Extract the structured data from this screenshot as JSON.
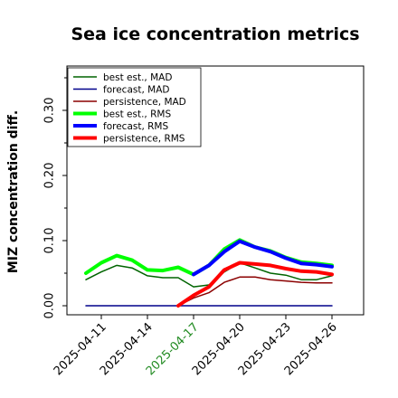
{
  "chart_data": {
    "type": "line",
    "title": "Sea ice concentration metrics",
    "ylabel": "MIZ concentration diff.",
    "xlabel": "",
    "ylim": [
      0.0,
      0.36
    ],
    "yticks": [
      "0.00",
      "0.10",
      "0.20",
      "0.30"
    ],
    "xticks": [
      "2025-04-11",
      "2025-04-14",
      "2025-04-17",
      "2025-04-20",
      "2025-04-23",
      "2025-04-26"
    ],
    "xtick_colors": [
      "#000000",
      "#000000",
      "#228b22",
      "#000000",
      "#000000",
      "#000000"
    ],
    "x": [
      "2025-04-10",
      "2025-04-11",
      "2025-04-12",
      "2025-04-13",
      "2025-04-14",
      "2025-04-15",
      "2025-04-16",
      "2025-04-17",
      "2025-04-18",
      "2025-04-19",
      "2025-04-20",
      "2025-04-21",
      "2025-04-22",
      "2025-04-23",
      "2025-04-24",
      "2025-04-25",
      "2025-04-26"
    ],
    "grid": false,
    "legend_position": "top-left",
    "series": [
      {
        "name": "best est., MAD",
        "color": "#006400",
        "width": 1.5,
        "values": [
          0.04,
          0.052,
          0.062,
          0.058,
          0.046,
          0.043,
          0.043,
          0.029,
          0.032,
          0.052,
          0.066,
          0.058,
          0.05,
          0.047,
          0.04,
          0.04,
          0.046
        ]
      },
      {
        "name": "forecast,  MAD",
        "color": "#00008b",
        "width": 1.5,
        "values": [
          0.0,
          0.0,
          0.0,
          0.0,
          0.0,
          0.0,
          0.0,
          0.0,
          0.0,
          0.0,
          0.0,
          0.0,
          0.0,
          0.0,
          0.0,
          0.0,
          0.0
        ]
      },
      {
        "name": "persistence, MAD",
        "color": "#8b0000",
        "width": 1.5,
        "values": [
          null,
          null,
          null,
          null,
          null,
          null,
          0.0,
          0.012,
          0.02,
          0.036,
          0.044,
          0.044,
          0.04,
          0.038,
          0.036,
          0.035,
          0.035
        ]
      },
      {
        "name": "best est., RMS",
        "color": "#00ff00",
        "width": 4,
        "values": [
          0.05,
          0.066,
          0.077,
          0.07,
          0.055,
          0.054,
          0.059,
          0.048,
          0.062,
          0.087,
          0.101,
          0.09,
          0.084,
          0.074,
          0.067,
          0.065,
          0.062
        ]
      },
      {
        "name": "forecast,  RMS",
        "color": "#0000ff",
        "width": 4,
        "values": [
          null,
          null,
          null,
          null,
          null,
          null,
          null,
          0.048,
          0.062,
          0.083,
          0.099,
          0.09,
          0.083,
          0.073,
          0.065,
          0.063,
          0.06
        ]
      },
      {
        "name": "persistence, RMS",
        "color": "#ff0000",
        "width": 4,
        "values": [
          null,
          null,
          null,
          null,
          null,
          null,
          0.0,
          0.016,
          0.029,
          0.055,
          0.066,
          0.064,
          0.062,
          0.057,
          0.053,
          0.052,
          0.048
        ]
      }
    ]
  }
}
